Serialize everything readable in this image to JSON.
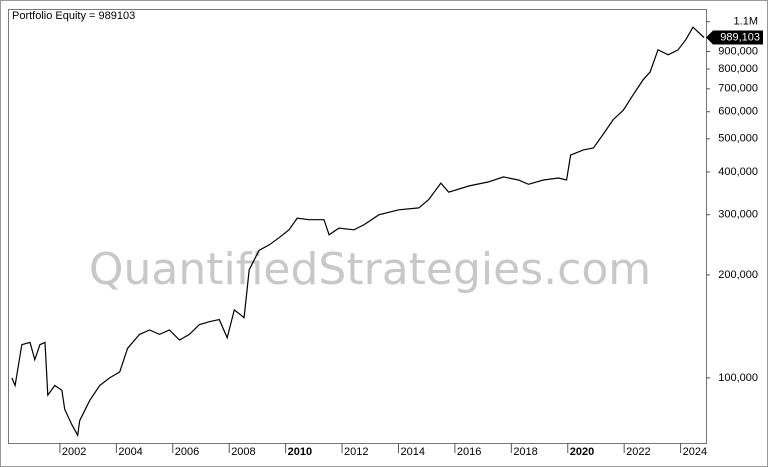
{
  "chart_data": {
    "type": "line",
    "title": "Portfolio Equity = 989103",
    "watermark": "QuantifiedStrategies.com",
    "x": [
      2000.3,
      2000.41,
      2000.65,
      2000.94,
      2001.11,
      2001.29,
      2001.47,
      2001.57,
      2001.82,
      2002.07,
      2002.17,
      2002.42,
      2002.63,
      2002.7,
      2003.06,
      2003.41,
      2003.76,
      2004.12,
      2004.4,
      2004.82,
      2005.18,
      2005.53,
      2005.88,
      2006.24,
      2006.59,
      2006.94,
      2007.3,
      2007.65,
      2007.93,
      2008.18,
      2008.53,
      2008.71,
      2009.06,
      2009.42,
      2009.77,
      2010.12,
      2010.41,
      2010.83,
      2011.36,
      2011.54,
      2011.89,
      2012.42,
      2012.77,
      2013.31,
      2014.01,
      2014.72,
      2015.07,
      2015.5,
      2015.78,
      2016.49,
      2017.19,
      2017.72,
      2018.25,
      2018.61,
      2019.14,
      2019.67,
      2019.96,
      2020.1,
      2020.55,
      2020.91,
      2021.26,
      2021.61,
      2021.97,
      2022.32,
      2022.67,
      2022.92,
      2023.2,
      2023.56,
      2023.91,
      2024.19,
      2024.44,
      2024.83
    ],
    "values": [
      100000,
      95000,
      125000,
      127000,
      113000,
      125000,
      127000,
      89000,
      95000,
      92000,
      81000,
      73000,
      68000,
      75000,
      86000,
      95000,
      100000,
      104000,
      122000,
      134000,
      138000,
      134000,
      138000,
      129000,
      134000,
      143000,
      146000,
      148000,
      131000,
      158000,
      150000,
      207000,
      236000,
      245000,
      257000,
      271000,
      293000,
      290000,
      290000,
      262000,
      274000,
      271000,
      280000,
      300000,
      310000,
      314000,
      332000,
      371000,
      349000,
      364000,
      374000,
      387000,
      379000,
      368000,
      379000,
      384000,
      379000,
      448000,
      464000,
      470000,
      516000,
      569000,
      606000,
      673000,
      744000,
      784000,
      910000,
      880000,
      910000,
      977000,
      1060000,
      989103
    ],
    "last_value_label": "989,103",
    "color": "#000000",
    "log_y": true,
    "xlim": [
      2000.16,
      2024.9
    ],
    "ylim": [
      64500,
      1190000
    ],
    "xticks": [
      2002,
      2004,
      2006,
      2008,
      2010,
      2012,
      2014,
      2016,
      2018,
      2020,
      2022,
      2024
    ],
    "bold_xticks": [
      2010,
      2020
    ],
    "yticks": [
      {
        "value": 100000,
        "label": "100,000"
      },
      {
        "value": 200000,
        "label": "200,000"
      },
      {
        "value": 300000,
        "label": "300,000"
      },
      {
        "value": 400000,
        "label": "400,000"
      },
      {
        "value": 500000,
        "label": "500,000"
      },
      {
        "value": 600000,
        "label": "600,000"
      },
      {
        "value": 700000,
        "label": "700,000"
      },
      {
        "value": 800000,
        "label": "800,000"
      },
      {
        "value": 900000,
        "label": "900,000"
      },
      {
        "value": 1100000,
        "label": "1.1M"
      }
    ]
  }
}
